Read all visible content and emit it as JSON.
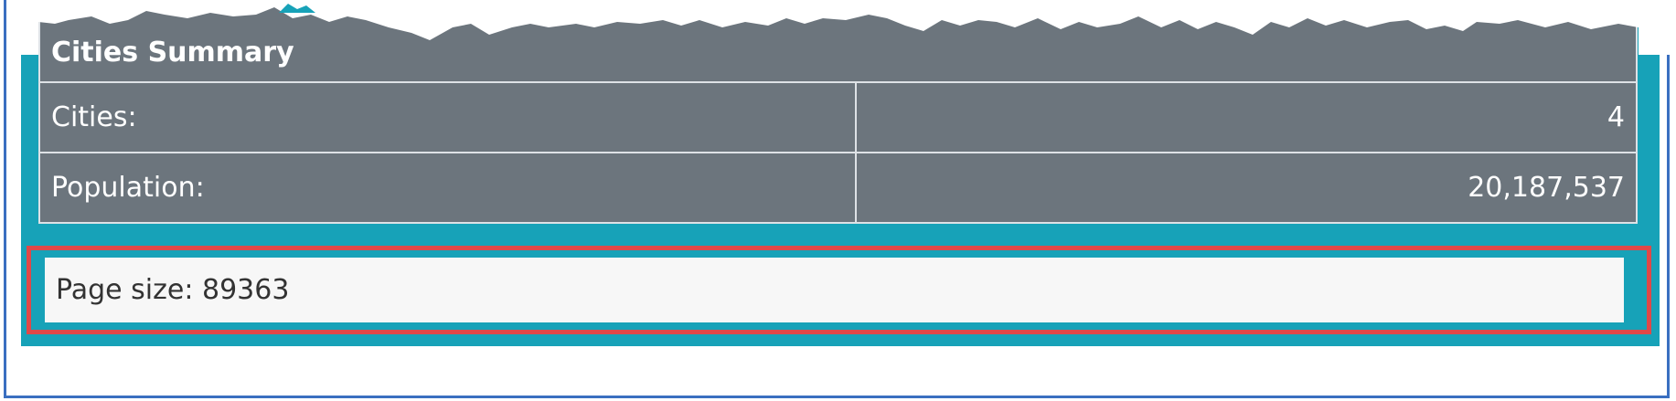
{
  "summary": {
    "title": "Cities Summary",
    "rows": [
      {
        "label": "Cities:",
        "value": "4"
      },
      {
        "label": "Population:",
        "value": "20,187,537"
      }
    ]
  },
  "footer": {
    "page_size_text": "Page size: 89363"
  },
  "colors": {
    "panel": "#17a2b8",
    "table_bg": "#6c757d",
    "highlight": "#e04848",
    "frame": "#3a6fc0"
  }
}
